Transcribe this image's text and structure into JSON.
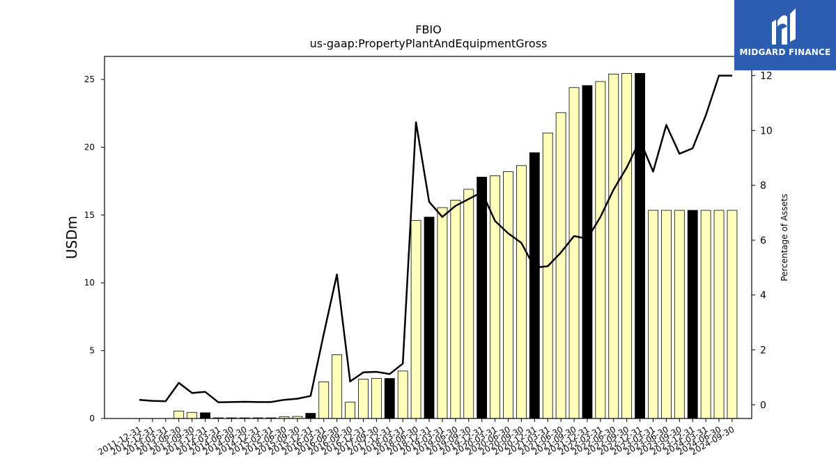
{
  "logo": {
    "text": "MIDGARD FINANCE"
  },
  "chart_data": {
    "type": "bar",
    "title": "FBIO",
    "subtitle": "us-gaap:PropertyPlantAndEquipmentGross",
    "ylabel": "USDm",
    "ylabel_right": "Percentage of Assets",
    "ylim": [
      0,
      26.7
    ],
    "ylim_right": [
      -0.5,
      12.7
    ],
    "yticks": [
      0,
      5,
      10,
      15,
      20,
      25
    ],
    "yticks_right": [
      0,
      2,
      4,
      6,
      8,
      10,
      12
    ],
    "categories": [
      "2011-12-31",
      "2012-12-31",
      "2013-03-31",
      "2013-06-30",
      "2013-09-30",
      "2013-12-31",
      "2014-03-31",
      "2014-06-30",
      "2014-09-30",
      "2014-12-31",
      "2015-03-31",
      "2015-06-30",
      "2015-09-30",
      "2015-12-31",
      "2016-03-31",
      "2016-06-30",
      "2016-09-30",
      "2016-12-31",
      "2017-09-30",
      "2017-12-31",
      "2018-03-31",
      "2018-06-30",
      "2018-12-31",
      "2019-03-31",
      "2019-06-30",
      "2019-09-30",
      "2019-12-31",
      "2020-03-31",
      "2020-06-30",
      "2020-09-30",
      "2020-12-31",
      "2021-03-31",
      "2021-06-30",
      "2021-09-30",
      "2021-12-31",
      "2022-03-31",
      "2022-06-30",
      "2022-09-30",
      "2022-12-31",
      "2023-03-31",
      "2023-06-30",
      "2023-09-30",
      "2023-12-31",
      "2024-03-31",
      "2024-06-30",
      "2024-09-30"
    ],
    "series": [
      {
        "type": "bar",
        "axis": "left",
        "values": [
          0,
          0,
          0,
          0.55,
          0.45,
          0.42,
          0.05,
          0.05,
          0.05,
          0.05,
          0.05,
          0.12,
          0.15,
          0.38,
          2.7,
          4.7,
          1.2,
          2.9,
          2.95,
          2.95,
          3.5,
          14.6,
          14.85,
          15.55,
          16.1,
          16.9,
          17.8,
          17.9,
          18.2,
          18.65,
          19.6,
          21.05,
          22.55,
          24.4,
          24.55,
          24.85,
          25.4,
          25.45,
          25.45,
          15.35,
          15.35,
          15.35,
          15.35,
          15.35,
          15.35,
          15.35
        ],
        "annual": [
          false,
          false,
          false,
          false,
          false,
          true,
          false,
          false,
          false,
          false,
          false,
          false,
          false,
          true,
          false,
          false,
          false,
          false,
          false,
          true,
          false,
          false,
          true,
          false,
          false,
          false,
          true,
          false,
          false,
          false,
          true,
          false,
          false,
          false,
          true,
          false,
          false,
          false,
          true,
          false,
          false,
          false,
          true,
          false,
          false,
          false
        ],
        "colors": {
          "quarterly": "#ffffbb",
          "annual": "#000000"
        }
      },
      {
        "type": "line",
        "axis": "right",
        "color": "#000000",
        "values": [
          0.18,
          0.14,
          0.13,
          0.8,
          0.43,
          0.47,
          0.09,
          0.1,
          0.11,
          0.1,
          0.1,
          0.18,
          0.22,
          0.32,
          2.58,
          4.75,
          0.85,
          1.18,
          1.2,
          1.12,
          1.5,
          10.3,
          7.4,
          6.85,
          7.25,
          7.5,
          7.75,
          6.7,
          6.25,
          5.9,
          5.0,
          5.05,
          5.55,
          6.15,
          6.05,
          6.85,
          7.85,
          8.65,
          9.65,
          8.5,
          10.2,
          9.15,
          9.35,
          10.55,
          12.0,
          12.0
        ]
      }
    ]
  }
}
